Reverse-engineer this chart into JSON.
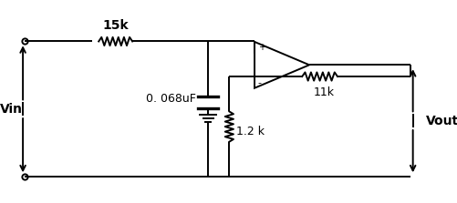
{
  "background_color": "#ffffff",
  "line_color": "#000000",
  "font_size": 9,
  "labels": {
    "vin": "Vin",
    "vout": "Vout",
    "r1": "15k",
    "c1": "0. 068uF",
    "r2": "11k",
    "r3": "1.2 k",
    "plus": "+",
    "minus": "-"
  },
  "figsize": [
    5.02,
    2.23
  ],
  "dpi": 100
}
